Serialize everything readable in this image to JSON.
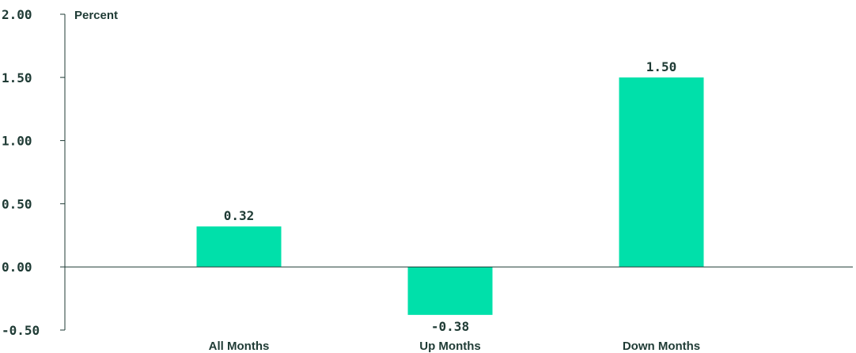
{
  "chart_data": {
    "type": "bar",
    "categories": [
      "All Months",
      "Up Months",
      "Down Months"
    ],
    "values": [
      0.32,
      -0.38,
      1.5
    ],
    "value_labels": [
      "0.32",
      "-0.38",
      "1.50"
    ],
    "title": "",
    "xlabel": "",
    "ylabel": "Percent",
    "ylim": [
      -0.5,
      2.0
    ],
    "yticks": [
      -0.5,
      0.0,
      0.5,
      1.0,
      1.5,
      2.0
    ],
    "ytick_labels": [
      "-0.50",
      "0.00",
      "0.50",
      "1.00",
      "1.50",
      "2.00"
    ],
    "grid": false,
    "legend": "none",
    "colors": {
      "bar": "#00e0aa",
      "text": "#1f3b35",
      "axis": "#1f3b35"
    }
  }
}
